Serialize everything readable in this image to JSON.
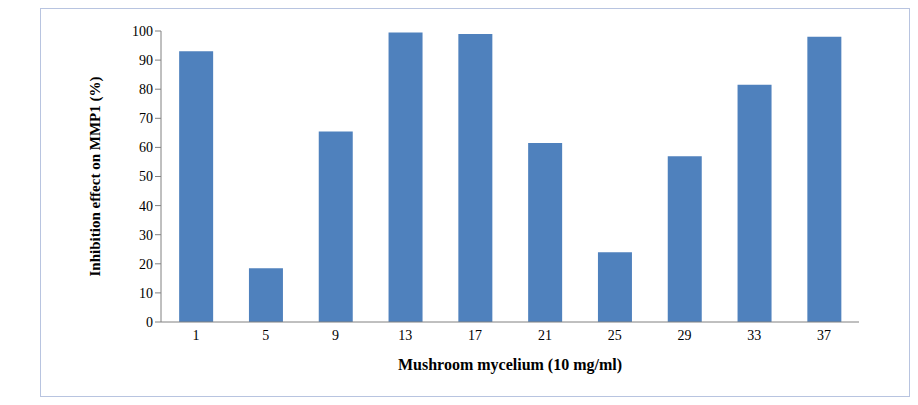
{
  "chart_data": {
    "type": "bar",
    "x_label": "Mushroom mycelium (10 mg/ml)",
    "y_label": "Inhibition effect on MMP1 (%)",
    "categories": [
      "1",
      "5",
      "9",
      "13",
      "17",
      "21",
      "25",
      "29",
      "33",
      "37"
    ],
    "values": [
      93,
      18.5,
      65.5,
      99.5,
      99,
      61.5,
      24,
      57,
      81.5,
      98
    ],
    "color": "#4f81bd",
    "ylim": [
      0,
      100
    ],
    "yticks": [
      0,
      10,
      20,
      30,
      40,
      50,
      60,
      70,
      80,
      90,
      100
    ],
    "grid": false
  }
}
